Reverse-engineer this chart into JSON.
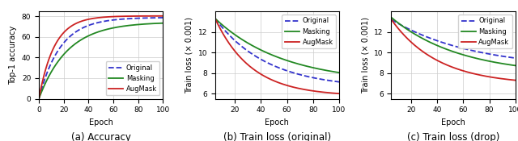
{
  "colors": {
    "original": "#3333cc",
    "masking": "#228822",
    "augmask": "#cc2222"
  },
  "panel_a": {
    "title": "(a) Accuracy",
    "xlabel": "Epoch",
    "ylabel": "Top-1 accuracy",
    "xlim": [
      0,
      100
    ],
    "ylim": [
      0,
      85
    ],
    "yticks": [
      0,
      20,
      40,
      60,
      80
    ],
    "xticks": [
      0,
      20,
      40,
      60,
      80,
      100
    ],
    "orig_k": 0.058,
    "orig_end": 79.0,
    "mask_k": 0.043,
    "mask_end": 74.5,
    "aug_k": 0.08,
    "aug_end": 80.5
  },
  "panel_b": {
    "title": "(b) Train loss (original)",
    "xlabel": "Epoch",
    "ylabel": "Train loss (× 0.001)",
    "xlim": [
      5,
      100
    ],
    "ylim": [
      5.5,
      14.0
    ],
    "yticks": [
      6,
      8,
      10,
      12
    ],
    "xticks": [
      20,
      40,
      60,
      80,
      100
    ],
    "orig_start": 13.3,
    "orig_end": 6.5,
    "orig_k": 0.025,
    "mask_start": 13.3,
    "mask_end": 7.0,
    "mask_k": 0.019,
    "aug_start": 13.3,
    "aug_end": 5.75,
    "aug_k": 0.036
  },
  "panel_c": {
    "title": "(c) Train loss (drop)",
    "xlabel": "Epoch",
    "ylabel": "Train loss (× 0.001)",
    "xlim": [
      5,
      100
    ],
    "ylim": [
      5.5,
      14.0
    ],
    "yticks": [
      6,
      8,
      10,
      12
    ],
    "xticks": [
      20,
      40,
      60,
      80,
      100
    ],
    "orig_start": 13.2,
    "orig_end": 8.4,
    "orig_k": 0.016,
    "mask_start": 13.4,
    "mask_end": 7.8,
    "mask_k": 0.019,
    "aug_start": 13.2,
    "aug_end": 6.85,
    "aug_k": 0.028
  },
  "legend_labels": [
    "Original",
    "Masking",
    "AugMask"
  ]
}
